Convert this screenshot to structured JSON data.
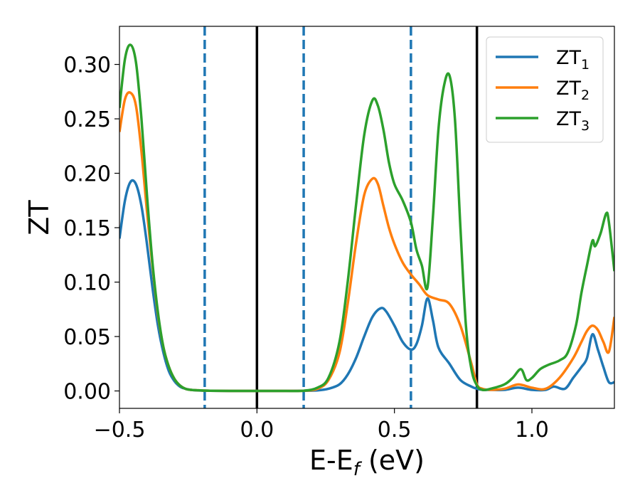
{
  "chart_data": {
    "type": "line",
    "xlabel": {
      "base": "E-E",
      "sub": "f",
      "tail": " (eV)"
    },
    "ylabel": "ZT",
    "xlim": [
      -0.5,
      1.3
    ],
    "ylim": [
      -0.016,
      0.335
    ],
    "x_ticks": [
      -0.5,
      0.0,
      0.5,
      1.0
    ],
    "x_tick_labels": [
      "−0.5",
      "0.0",
      "0.5",
      "1.0"
    ],
    "y_ticks": [
      0.0,
      0.05,
      0.1,
      0.15,
      0.2,
      0.25,
      0.3
    ],
    "y_tick_labels": [
      "0.00",
      "0.05",
      "0.10",
      "0.15",
      "0.20",
      "0.25",
      "0.30"
    ],
    "grid": false,
    "legend_position": "top-right",
    "vlines": [
      {
        "x": -0.19,
        "style": "dashed",
        "color": "#1f77b4"
      },
      {
        "x": 0.0,
        "style": "solid",
        "color": "#000000"
      },
      {
        "x": 0.17,
        "style": "dashed",
        "color": "#1f77b4"
      },
      {
        "x": 0.56,
        "style": "dashed",
        "color": "#1f77b4"
      },
      {
        "x": 0.8,
        "style": "solid",
        "color": "#000000"
      }
    ],
    "series": [
      {
        "name": "ZT",
        "name_sub": "1",
        "color": "#1f77b4",
        "x": [
          -0.5,
          -0.48,
          -0.46,
          -0.44,
          -0.42,
          -0.4,
          -0.38,
          -0.36,
          -0.34,
          -0.32,
          -0.3,
          -0.28,
          -0.26,
          -0.24,
          -0.22,
          -0.2,
          -0.17,
          -0.1,
          0.0,
          0.1,
          0.17,
          0.22,
          0.26,
          0.3,
          0.33,
          0.36,
          0.39,
          0.42,
          0.45,
          0.47,
          0.5,
          0.53,
          0.56,
          0.58,
          0.6,
          0.62,
          0.64,
          0.66,
          0.7,
          0.74,
          0.78,
          0.8,
          0.82,
          0.85,
          0.9,
          0.95,
          1.0,
          1.05,
          1.08,
          1.12,
          1.15,
          1.18,
          1.2,
          1.22,
          1.24,
          1.26,
          1.28,
          1.3
        ],
        "values": [
          0.14,
          0.175,
          0.192,
          0.19,
          0.17,
          0.135,
          0.095,
          0.06,
          0.035,
          0.018,
          0.009,
          0.004,
          0.002,
          0.001,
          0.0005,
          0.0003,
          0.0002,
          0.0,
          0.0,
          0.0,
          0.0002,
          0.0005,
          0.002,
          0.006,
          0.015,
          0.03,
          0.05,
          0.068,
          0.076,
          0.073,
          0.06,
          0.045,
          0.038,
          0.043,
          0.06,
          0.085,
          0.065,
          0.04,
          0.025,
          0.01,
          0.004,
          0.002,
          0.001,
          0.001,
          0.001,
          0.003,
          0.001,
          0.001,
          0.004,
          0.002,
          0.012,
          0.022,
          0.03,
          0.052,
          0.038,
          0.022,
          0.008,
          0.008
        ]
      },
      {
        "name": "ZT",
        "name_sub": "2",
        "color": "#ff7f0e",
        "x": [
          -0.5,
          -0.48,
          -0.46,
          -0.44,
          -0.42,
          -0.4,
          -0.38,
          -0.36,
          -0.34,
          -0.32,
          -0.3,
          -0.28,
          -0.26,
          -0.24,
          -0.22,
          -0.2,
          -0.17,
          -0.1,
          0.0,
          0.1,
          0.17,
          0.22,
          0.26,
          0.3,
          0.33,
          0.36,
          0.39,
          0.42,
          0.44,
          0.46,
          0.48,
          0.5,
          0.53,
          0.56,
          0.59,
          0.62,
          0.66,
          0.7,
          0.74,
          0.78,
          0.8,
          0.82,
          0.85,
          0.9,
          0.95,
          1.0,
          1.05,
          1.1,
          1.15,
          1.18,
          1.2,
          1.22,
          1.24,
          1.26,
          1.28,
          1.3
        ],
        "values": [
          0.238,
          0.268,
          0.274,
          0.262,
          0.22,
          0.165,
          0.115,
          0.07,
          0.04,
          0.022,
          0.011,
          0.005,
          0.002,
          0.001,
          0.0007,
          0.0004,
          0.0002,
          0.0,
          0.0,
          0.0,
          0.0002,
          0.002,
          0.01,
          0.035,
          0.08,
          0.135,
          0.18,
          0.195,
          0.19,
          0.17,
          0.15,
          0.135,
          0.118,
          0.107,
          0.098,
          0.088,
          0.084,
          0.08,
          0.06,
          0.025,
          0.006,
          0.002,
          0.001,
          0.002,
          0.006,
          0.003,
          0.002,
          0.012,
          0.03,
          0.045,
          0.055,
          0.06,
          0.056,
          0.045,
          0.036,
          0.068
        ]
      },
      {
        "name": "ZT",
        "name_sub": "3",
        "color": "#2ca02c",
        "x": [
          -0.5,
          -0.48,
          -0.46,
          -0.44,
          -0.42,
          -0.4,
          -0.38,
          -0.36,
          -0.34,
          -0.32,
          -0.3,
          -0.28,
          -0.26,
          -0.24,
          -0.22,
          -0.2,
          -0.17,
          -0.1,
          0.0,
          0.1,
          0.17,
          0.22,
          0.26,
          0.3,
          0.33,
          0.36,
          0.39,
          0.42,
          0.44,
          0.46,
          0.48,
          0.5,
          0.53,
          0.56,
          0.58,
          0.6,
          0.62,
          0.64,
          0.66,
          0.68,
          0.7,
          0.72,
          0.74,
          0.76,
          0.78,
          0.8,
          0.82,
          0.85,
          0.9,
          0.93,
          0.96,
          0.98,
          1.0,
          1.03,
          1.06,
          1.1,
          1.13,
          1.16,
          1.18,
          1.2,
          1.22,
          1.23,
          1.25,
          1.27,
          1.28,
          1.3
        ],
        "values": [
          0.26,
          0.305,
          0.318,
          0.302,
          0.25,
          0.18,
          0.118,
          0.072,
          0.04,
          0.022,
          0.011,
          0.005,
          0.002,
          0.001,
          0.0007,
          0.0004,
          0.0002,
          0.0,
          0.0,
          0.0,
          0.0002,
          0.003,
          0.012,
          0.045,
          0.1,
          0.17,
          0.235,
          0.267,
          0.262,
          0.24,
          0.21,
          0.19,
          0.175,
          0.155,
          0.13,
          0.115,
          0.095,
          0.16,
          0.24,
          0.28,
          0.29,
          0.25,
          0.15,
          0.06,
          0.02,
          0.005,
          0.001,
          0.002,
          0.006,
          0.012,
          0.02,
          0.01,
          0.012,
          0.02,
          0.024,
          0.028,
          0.035,
          0.06,
          0.09,
          0.115,
          0.138,
          0.133,
          0.145,
          0.163,
          0.155,
          0.11
        ]
      }
    ]
  }
}
